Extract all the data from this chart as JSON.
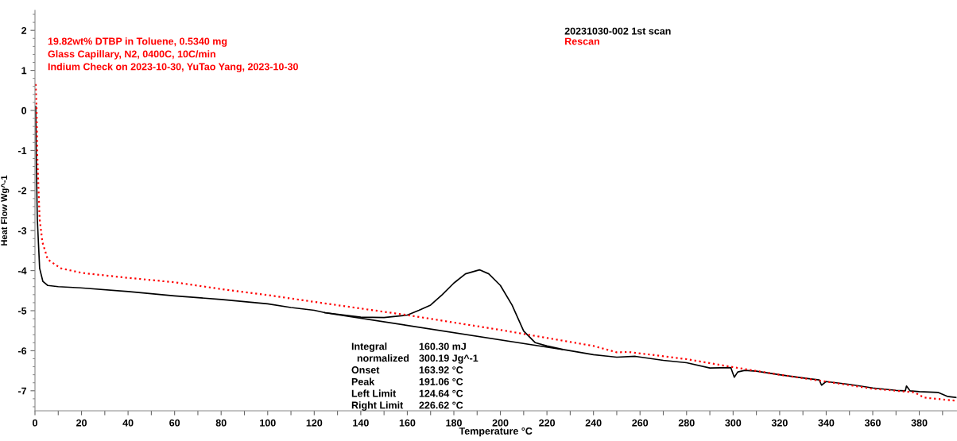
{
  "chart_data": {
    "type": "line",
    "xlabel": "Temperature °C",
    "ylabel": "Heat Flow Wg^-1",
    "xlim": [
      0,
      396
    ],
    "ylim": [
      -7.5,
      2.5
    ],
    "xticks": [
      0,
      {
        "value": 10,
        "label": null
      },
      20,
      {
        "value": 30,
        "label": null
      },
      40,
      {
        "value": 50,
        "label": null
      },
      60,
      {
        "value": 70,
        "label": null
      },
      80,
      {
        "value": 90,
        "label": null
      },
      100,
      {
        "value": 110,
        "label": null
      },
      120,
      {
        "value": 130,
        "label": null
      },
      140,
      {
        "value": 150,
        "label": null
      },
      160,
      {
        "value": 170,
        "label": null
      },
      180,
      {
        "value": 190,
        "label": null
      },
      200,
      {
        "value": 210,
        "label": null
      },
      220,
      {
        "value": 230,
        "label": null
      },
      240,
      {
        "value": 250,
        "label": null
      },
      260,
      {
        "value": 270,
        "label": null
      },
      280,
      {
        "value": 290,
        "label": null
      },
      300,
      {
        "value": 310,
        "label": null
      },
      320,
      {
        "value": 330,
        "label": null
      },
      340,
      {
        "value": 350,
        "label": null
      },
      360,
      {
        "value": 370,
        "label": null
      },
      380,
      {
        "value": 390,
        "label": null
      }
    ],
    "yticks": [
      -7,
      -6,
      -5,
      -4,
      -3,
      -2,
      -1,
      0,
      1,
      2
    ],
    "grid": false,
    "legend": "top right",
    "series": [
      {
        "name": "20231030-002 1st scan",
        "color": "#000000",
        "line_style": "solid",
        "x": [
          0.3,
          0.5,
          1,
          2,
          3.4,
          5.5,
          10,
          19.5,
          40,
          60,
          80,
          100,
          110,
          120,
          124.6,
          140,
          150,
          160,
          165,
          170,
          175,
          180,
          185,
          191,
          195,
          200,
          205,
          210,
          215,
          220,
          227,
          240,
          250,
          258,
          270,
          280,
          290,
          299,
          300.5,
          302,
          305,
          310,
          320,
          330,
          337,
          338,
          340,
          350,
          360,
          370,
          374,
          374.5,
          376,
          380,
          388,
          392,
          396
        ],
        "values": [
          0.1,
          -1.0,
          -2.7,
          -3.94,
          -4.27,
          -4.37,
          -4.4,
          -4.43,
          -4.52,
          -4.63,
          -4.72,
          -4.83,
          -4.92,
          -4.99,
          -5.05,
          -5.16,
          -5.17,
          -5.11,
          -4.99,
          -4.86,
          -4.6,
          -4.31,
          -4.08,
          -3.98,
          -4.08,
          -4.37,
          -4.86,
          -5.51,
          -5.8,
          -5.88,
          -5.97,
          -6.1,
          -6.16,
          -6.14,
          -6.24,
          -6.3,
          -6.43,
          -6.42,
          -6.66,
          -6.53,
          -6.49,
          -6.51,
          -6.6,
          -6.68,
          -6.73,
          -6.86,
          -6.77,
          -6.84,
          -6.93,
          -6.99,
          -7.0,
          -6.88,
          -7.0,
          -7.02,
          -7.04,
          -7.14,
          -7.17
        ]
      },
      {
        "color": "#000000",
        "line_style": "solid",
        "x": [
          124.64,
          226.62
        ],
        "values": [
          -5.05,
          -5.97
        ]
      },
      {
        "name": "Rescan",
        "color": "#ff0000",
        "line_style": "dotted",
        "x": [
          0.3,
          0.7,
          1,
          2,
          3.2,
          5.5,
          11,
          20.5,
          40,
          60,
          80,
          100,
          120,
          160,
          200,
          240,
          250,
          255,
          280,
          300,
          320,
          340,
          360,
          378,
          382,
          396
        ],
        "values": [
          0.66,
          0,
          -1.14,
          -2.71,
          -3.29,
          -3.72,
          -3.94,
          -4.06,
          -4.18,
          -4.29,
          -4.46,
          -4.61,
          -4.78,
          -5.11,
          -5.48,
          -5.88,
          -6.04,
          -6.03,
          -6.21,
          -6.41,
          -6.6,
          -6.77,
          -6.95,
          -7.04,
          -7.17,
          -7.25
        ]
      }
    ],
    "annotations": [
      "19.82wt% DTBP in Toluene, 0.5340 mg",
      "Glass Capillary, N2, 0400C, 10C/min",
      "Indium Check on 2023-10-30, YuTao Yang, 2023-10-30",
      "Integral",
      "160.30 mJ",
      "  normalized",
      "300.19 Jg^-1",
      "Onset",
      "163.92 °C",
      "Peak",
      "191.06 °C",
      "Left Limit",
      "124.64 °C",
      "Right Limit",
      "226.62 °C"
    ]
  }
}
